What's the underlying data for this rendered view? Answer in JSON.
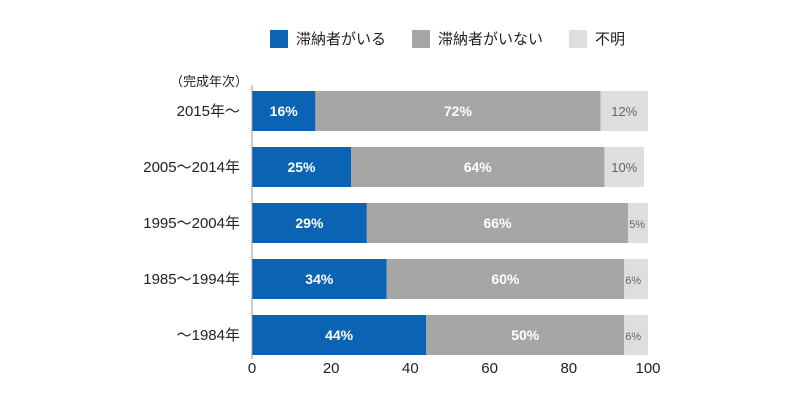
{
  "chart_data": {
    "type": "bar",
    "orientation": "horizontal",
    "stacked": true,
    "y_axis_title": "（完成年次）",
    "categories": [
      "2015年〜",
      "2005〜2014年",
      "1995〜2004年",
      "1985〜1994年",
      "〜1984年"
    ],
    "series": [
      {
        "name": "滞納者がいる",
        "color": "#0b63b3",
        "values": [
          16,
          25,
          29,
          34,
          44
        ],
        "labels": [
          "16%",
          "25%",
          "29%",
          "34%",
          "44%"
        ]
      },
      {
        "name": "滞納者がいない",
        "color": "#a6a6a6",
        "values": [
          72,
          64,
          66,
          60,
          50
        ],
        "labels": [
          "72%",
          "64%",
          "66%",
          "60%",
          "50%"
        ]
      },
      {
        "name": "不明",
        "color": "#dedede",
        "values": [
          12,
          10,
          5,
          6,
          6
        ],
        "labels": [
          "12%",
          "10%",
          "5%",
          "6%",
          "6%"
        ]
      }
    ],
    "xlim": [
      0,
      100
    ],
    "xticks": [
      0,
      20,
      40,
      60,
      80,
      100
    ],
    "xtick_labels": [
      "0",
      "20",
      "40",
      "60",
      "80",
      "100"
    ]
  }
}
